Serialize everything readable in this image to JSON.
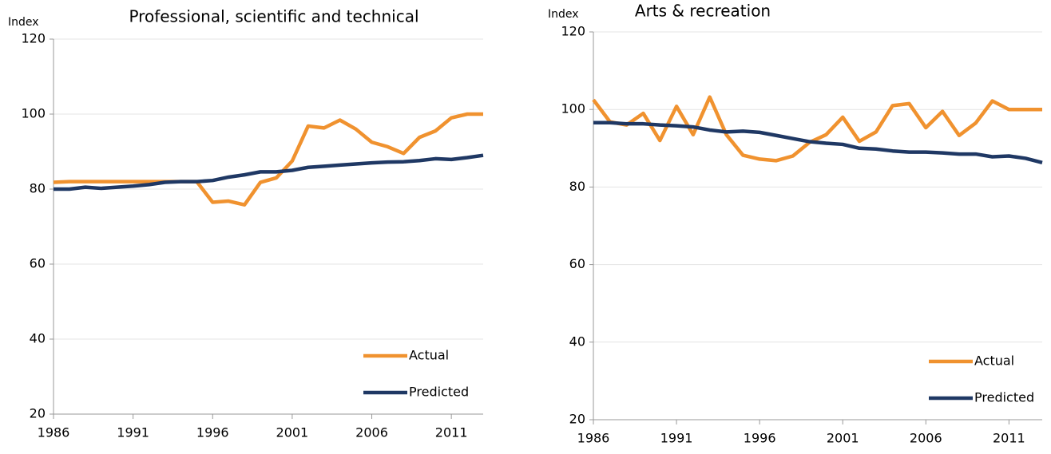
{
  "chart_data": [
    {
      "type": "line",
      "title": "Professional, scientific and technical",
      "y_label": "Index",
      "x": [
        1986,
        1987,
        1988,
        1989,
        1990,
        1991,
        1992,
        1993,
        1994,
        1995,
        1996,
        1997,
        1998,
        1999,
        2000,
        2001,
        2002,
        2003,
        2004,
        2005,
        2006,
        2007,
        2008,
        2009,
        2010,
        2011,
        2012,
        2013
      ],
      "series": [
        {
          "name": "Actual",
          "color": "#f0922f",
          "values": [
            81.8,
            82,
            82,
            82,
            82,
            82,
            82,
            82,
            82,
            82,
            76.5,
            76.8,
            75.8,
            81.8,
            83,
            87.5,
            96.8,
            96.3,
            98.4,
            96,
            92.5,
            91.3,
            89.5,
            93.8,
            95.5,
            99,
            100,
            100
          ]
        },
        {
          "name": "Predicted",
          "color": "#1f3864",
          "values": [
            80,
            80,
            80.5,
            80.2,
            80.5,
            80.8,
            81.2,
            81.8,
            82,
            82,
            82.3,
            83.2,
            83.8,
            84.6,
            84.6,
            85,
            85.8,
            86.1,
            86.4,
            86.7,
            87,
            87.2,
            87.3,
            87.6,
            88.1,
            87.9,
            88.4,
            89
          ]
        }
      ],
      "xlim": [
        1986,
        2013
      ],
      "xticks": [
        1986,
        1991,
        1996,
        2001,
        2006,
        2011
      ],
      "ylim": [
        20,
        120
      ],
      "yticks": [
        20,
        40,
        60,
        80,
        100,
        120
      ],
      "grid": true,
      "legend": "lower-right"
    },
    {
      "type": "line",
      "title": "Arts & recreation",
      "y_label": "Index",
      "x": [
        1986,
        1987,
        1988,
        1989,
        1990,
        1991,
        1992,
        1993,
        1994,
        1995,
        1996,
        1997,
        1998,
        1999,
        2000,
        2001,
        2002,
        2003,
        2004,
        2005,
        2006,
        2007,
        2008,
        2009,
        2010,
        2011,
        2012,
        2013
      ],
      "series": [
        {
          "name": "Actual",
          "color": "#f0922f",
          "values": [
            102.5,
            96.8,
            96,
            99,
            92,
            100.8,
            93.5,
            103.2,
            93.5,
            88.2,
            87.2,
            86.8,
            88,
            91.5,
            93.5,
            98,
            91.8,
            94.2,
            101,
            101.5,
            95.3,
            99.5,
            93.3,
            96.5,
            102.2,
            100,
            100,
            100
          ]
        },
        {
          "name": "Predicted",
          "color": "#1f3864",
          "values": [
            96.6,
            96.6,
            96.3,
            96.3,
            96,
            95.8,
            95.5,
            94.7,
            94.2,
            94.4,
            94.1,
            93.3,
            92.5,
            91.7,
            91.3,
            91,
            90,
            89.8,
            89.3,
            89,
            89,
            88.8,
            88.5,
            88.5,
            87.8,
            88,
            87.4,
            86.3
          ]
        }
      ],
      "xlim": [
        1986,
        2013
      ],
      "xticks": [
        1986,
        1991,
        1996,
        2001,
        2006,
        2011
      ],
      "ylim": [
        20,
        120
      ],
      "yticks": [
        20,
        40,
        60,
        80,
        100,
        120
      ],
      "grid": true,
      "legend": "lower-right"
    }
  ]
}
